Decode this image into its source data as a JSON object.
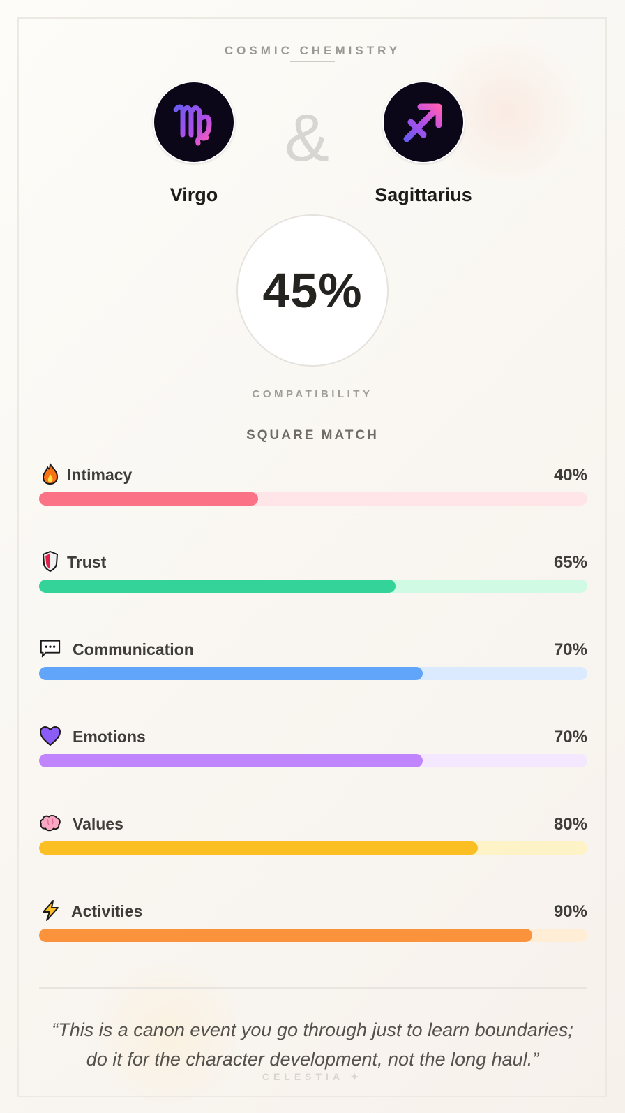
{
  "header": {
    "eyebrow": "COSMIC CHEMISTRY"
  },
  "pair": {
    "left": {
      "name": "Virgo",
      "icon": "virgo-icon",
      "glyph": "♍"
    },
    "connector": "&",
    "right": {
      "name": "Sagittarius",
      "icon": "sagittarius-icon",
      "glyph": "♐"
    }
  },
  "score": {
    "value": "45%",
    "label": "COMPATIBILITY",
    "match_type": "SQUARE MATCH"
  },
  "metrics": [
    {
      "label": "Intimacy",
      "pct": "40%",
      "value": 40,
      "icon": "fire-icon",
      "glyph": "🔥",
      "color": "#fb7185",
      "track": "#ffe4e8"
    },
    {
      "label": "Trust",
      "pct": "65%",
      "value": 65,
      "icon": "shield-icon",
      "glyph": "🛡",
      "color": "#34d399",
      "track": "#d1fae5"
    },
    {
      "label": "Communication",
      "pct": "70%",
      "value": 70,
      "icon": "speech-bubble-icon",
      "glyph": "💬",
      "color": "#60a5fa",
      "track": "#dbeafe"
    },
    {
      "label": "Emotions",
      "pct": "70%",
      "value": 70,
      "icon": "heart-icon",
      "glyph": "💜",
      "color": "#c084fc",
      "track": "#f3e8ff"
    },
    {
      "label": "Values",
      "pct": "80%",
      "value": 80,
      "icon": "brain-icon",
      "glyph": "🧠",
      "color": "#fbbf24",
      "track": "#fef3c7"
    },
    {
      "label": "Activities",
      "pct": "90%",
      "value": 90,
      "icon": "lightning-icon",
      "glyph": "⚡",
      "color": "#fb923c",
      "track": "#ffedd5"
    }
  ],
  "quote": {
    "line1": "“This is a canon event you go through just to learn boundaries;",
    "line2": "do it for the character development, not the long haul.”"
  },
  "footer": {
    "brand": "CELESTIA ✦"
  }
}
